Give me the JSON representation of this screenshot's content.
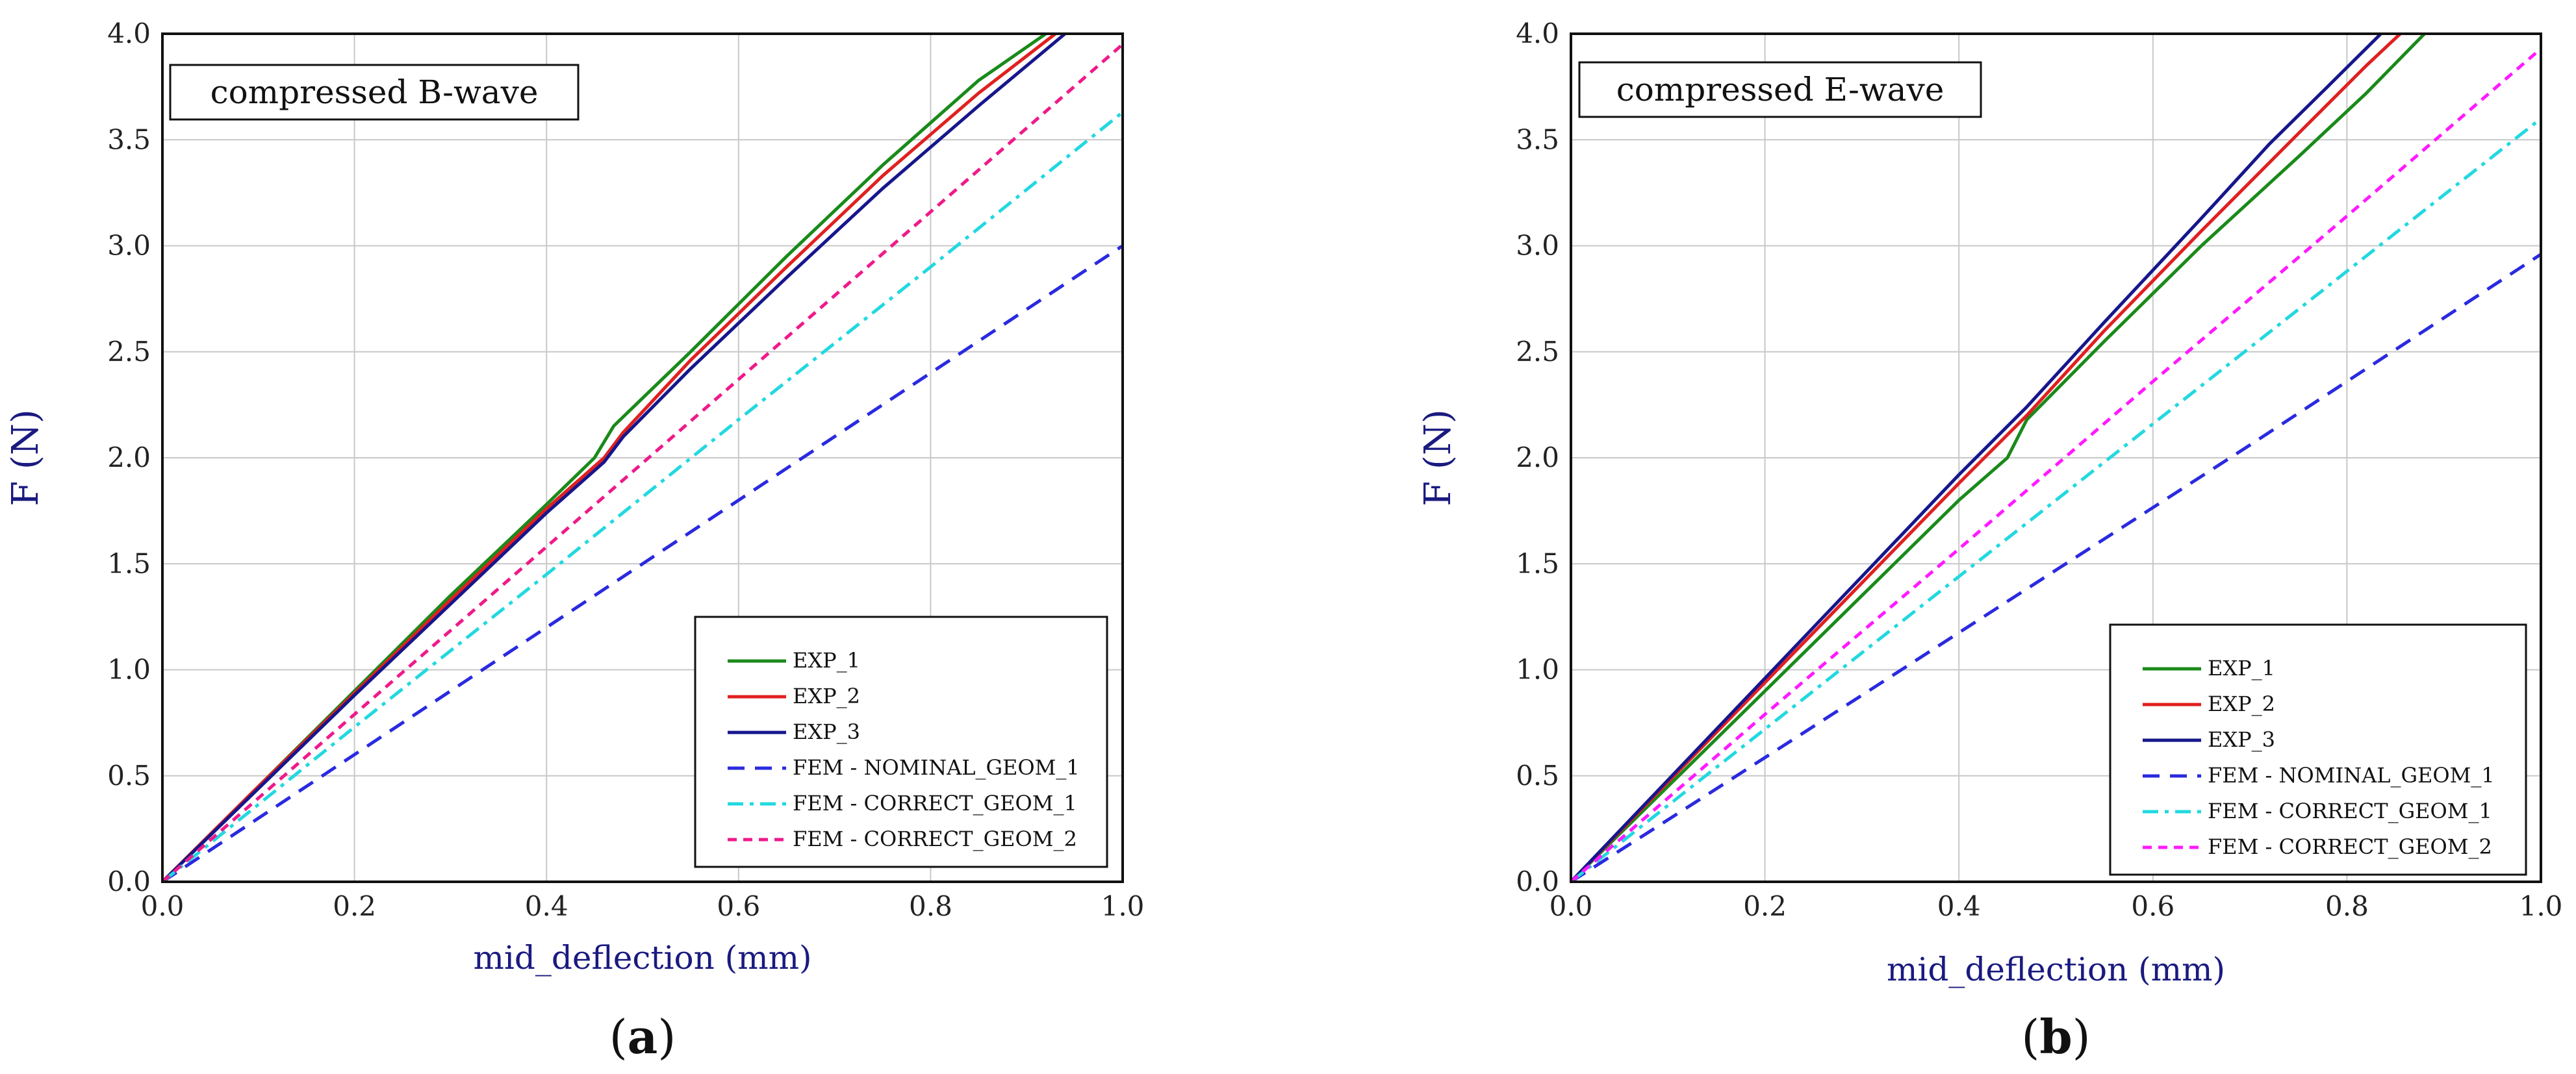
{
  "chart_data": [
    {
      "type": "line",
      "panel_label": "(a)",
      "panel_letter": "a",
      "box_title": "compressed B-wave",
      "xlabel": "mid_deflection (mm)",
      "ylabel": "F (N)",
      "xlim": [
        0.0,
        1.0
      ],
      "ylim": [
        0.0,
        4.0
      ],
      "x_ticks": [
        "0.0",
        "0.2",
        "0.4",
        "0.6",
        "0.8",
        "1.0"
      ],
      "y_ticks": [
        "0.0",
        "0.5",
        "1.0",
        "1.5",
        "2.0",
        "2.5",
        "3.0",
        "3.5",
        "4.0"
      ],
      "grid": true,
      "legend_position": "bottom-right",
      "series": [
        {
          "name": "EXP_1",
          "color": "#1a8a1a",
          "dash": "solid",
          "x": [
            0,
            0.1,
            0.2,
            0.3,
            0.4,
            0.45,
            0.47,
            0.55,
            0.65,
            0.75,
            0.85,
            0.92
          ],
          "y": [
            0,
            0.45,
            0.9,
            1.35,
            1.78,
            2.0,
            2.15,
            2.5,
            2.95,
            3.38,
            3.78,
            4.0
          ]
        },
        {
          "name": "EXP_2",
          "color": "#e02020",
          "dash": "solid",
          "x": [
            0,
            0.1,
            0.2,
            0.3,
            0.4,
            0.46,
            0.48,
            0.55,
            0.65,
            0.75,
            0.85,
            0.93
          ],
          "y": [
            0,
            0.45,
            0.89,
            1.33,
            1.76,
            2.0,
            2.12,
            2.46,
            2.9,
            3.33,
            3.72,
            4.0
          ]
        },
        {
          "name": "EXP_3",
          "color": "#16168c",
          "dash": "solid",
          "x": [
            0,
            0.1,
            0.2,
            0.3,
            0.4,
            0.46,
            0.48,
            0.55,
            0.65,
            0.75,
            0.85,
            0.94
          ],
          "y": [
            0,
            0.44,
            0.88,
            1.31,
            1.74,
            1.98,
            2.1,
            2.42,
            2.85,
            3.27,
            3.66,
            4.0
          ]
        },
        {
          "name": "FEM - NOMINAL_GEOM_1",
          "color": "#2a2ae0",
          "dash": "long",
          "x": [
            0,
            0.1,
            0.3,
            0.5,
            0.7,
            0.9,
            1.0
          ],
          "y": [
            0,
            0.3,
            0.9,
            1.5,
            2.1,
            2.7,
            3.0
          ]
        },
        {
          "name": "FEM - CORRECT_GEOM_1",
          "color": "#22d8e0",
          "dash": "dashdot",
          "x": [
            0,
            0.2,
            0.4,
            0.6,
            0.8,
            1.0
          ],
          "y": [
            0,
            0.73,
            1.45,
            2.18,
            2.9,
            3.63
          ]
        },
        {
          "name": "FEM - CORRECT_GEOM_2",
          "color": "#ee1a8a",
          "dash": "short",
          "x": [
            0,
            0.2,
            0.4,
            0.6,
            0.8,
            1.0
          ],
          "y": [
            0,
            0.79,
            1.58,
            2.37,
            3.16,
            3.95
          ]
        }
      ]
    },
    {
      "type": "line",
      "panel_label": "(b)",
      "panel_letter": "b",
      "box_title": "compressed E-wave",
      "xlabel": "mid_deflection (mm)",
      "ylabel": "F (N)",
      "xlim": [
        0.0,
        1.0
      ],
      "ylim": [
        0.0,
        4.0
      ],
      "x_ticks": [
        "0.0",
        "0.2",
        "0.4",
        "0.6",
        "0.8",
        "1.0"
      ],
      "y_ticks": [
        "0.0",
        "0.5",
        "1.0",
        "1.5",
        "2.0",
        "2.5",
        "3.0",
        "3.5",
        "4.0"
      ],
      "grid": true,
      "legend_position": "bottom-right",
      "series": [
        {
          "name": "EXP_1",
          "color": "#1a8a1a",
          "dash": "solid",
          "x": [
            0,
            0.1,
            0.2,
            0.3,
            0.4,
            0.45,
            0.47,
            0.55,
            0.65,
            0.75,
            0.82,
            0.88
          ],
          "y": [
            0,
            0.45,
            0.9,
            1.35,
            1.8,
            2.0,
            2.18,
            2.55,
            3.0,
            3.42,
            3.72,
            4.0
          ]
        },
        {
          "name": "EXP_2",
          "color": "#e02020",
          "dash": "solid",
          "x": [
            0,
            0.1,
            0.2,
            0.3,
            0.4,
            0.47,
            0.55,
            0.65,
            0.75,
            0.82,
            0.855
          ],
          "y": [
            0,
            0.47,
            0.94,
            1.41,
            1.88,
            2.2,
            2.6,
            3.07,
            3.53,
            3.85,
            4.0
          ]
        },
        {
          "name": "EXP_3",
          "color": "#16168c",
          "dash": "solid",
          "x": [
            0,
            0.1,
            0.2,
            0.3,
            0.4,
            0.47,
            0.55,
            0.65,
            0.72,
            0.78,
            0.835
          ],
          "y": [
            0,
            0.48,
            0.96,
            1.44,
            1.92,
            2.24,
            2.64,
            3.13,
            3.48,
            3.75,
            4.0
          ]
        },
        {
          "name": "FEM - NOMINAL_GEOM_1",
          "color": "#2a2ae0",
          "dash": "long",
          "x": [
            0,
            0.13,
            0.3,
            0.5,
            0.7,
            0.9,
            1.0
          ],
          "y": [
            0,
            0.38,
            0.88,
            1.47,
            2.06,
            2.66,
            2.96
          ]
        },
        {
          "name": "FEM - CORRECT_GEOM_1",
          "color": "#22d8e0",
          "dash": "dashdot",
          "x": [
            0,
            0.2,
            0.4,
            0.6,
            0.8,
            1.0
          ],
          "y": [
            0,
            0.72,
            1.44,
            2.16,
            2.88,
            3.6
          ]
        },
        {
          "name": "FEM - CORRECT_GEOM_2",
          "color": "#ff1aff",
          "dash": "short",
          "x": [
            0,
            0.2,
            0.4,
            0.6,
            0.8,
            1.0
          ],
          "y": [
            0,
            0.79,
            1.57,
            2.36,
            3.14,
            3.93
          ]
        }
      ]
    }
  ]
}
